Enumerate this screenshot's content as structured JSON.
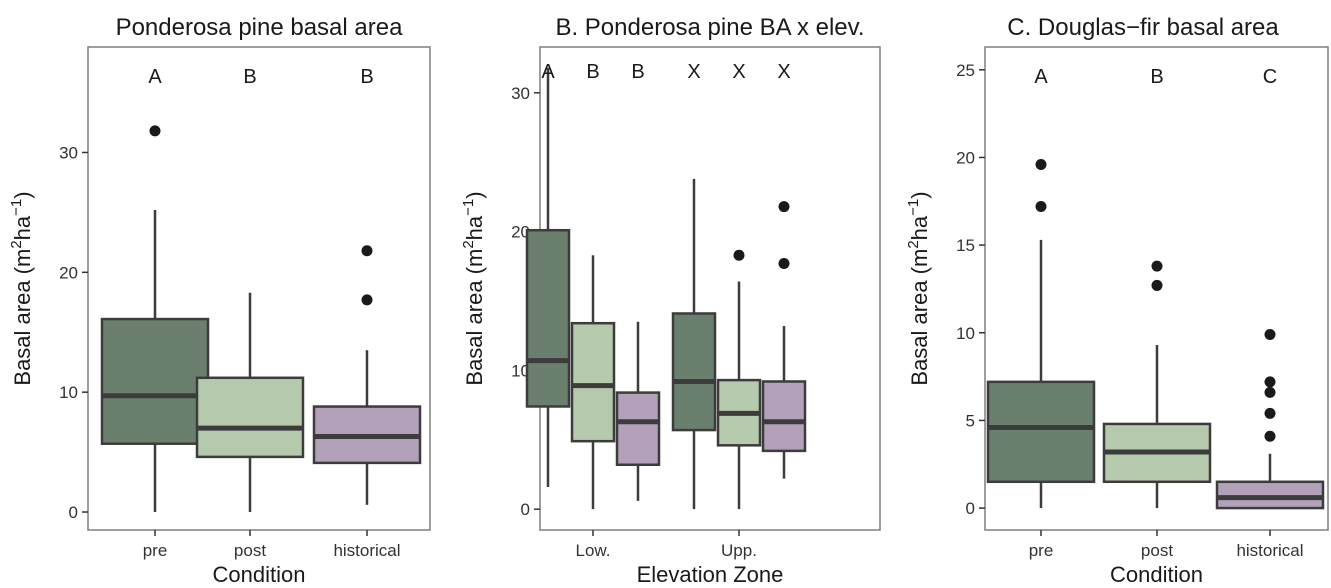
{
  "colors": {
    "pre": "#6b7f6e",
    "post": "#b5c9ad",
    "historical": "#b3a0b9",
    "outline": "#3c3c3c",
    "outlier": "#1a1a1a"
  },
  "chart_data": [
    {
      "type": "box",
      "title": "Ponderosa pine basal area",
      "xlabel": "Condition",
      "ylabel_main": "Basal area (m",
      "ylabel_sup1": "2",
      "ylabel_mid": "ha",
      "ylabel_sup2": "−1",
      "ylabel_end": ")",
      "ylim": [
        -1.5,
        38.8
      ],
      "yticks": [
        0,
        10,
        20,
        30
      ],
      "groups": [
        "pre",
        "post",
        "historical"
      ],
      "boxes": [
        {
          "group": "pre",
          "fill": "pre",
          "letter": "A",
          "min": 0,
          "q1": 5.7,
          "median": 9.7,
          "q3": 16.1,
          "max": 25.2,
          "outliers": [
            31.8
          ]
        },
        {
          "group": "post",
          "fill": "post",
          "letter": "B",
          "min": 0,
          "q1": 4.6,
          "median": 7.0,
          "q3": 11.2,
          "max": 18.3,
          "outliers": []
        },
        {
          "group": "historical",
          "fill": "historical",
          "letter": "B",
          "min": 0.6,
          "q1": 4.1,
          "median": 6.3,
          "q3": 8.8,
          "max": 13.5,
          "outliers": [
            17.7,
            21.8
          ]
        }
      ]
    },
    {
      "type": "box",
      "title": "B. Ponderosa pine BA x elev.",
      "xlabel": "Elevation Zone",
      "ylabel_main": "Basal area (m",
      "ylabel_sup1": "2",
      "ylabel_mid": "ha",
      "ylabel_sup2": "−1",
      "ylabel_end": ")",
      "ylim": [
        -1.5,
        33.3
      ],
      "yticks": [
        0,
        10,
        20,
        30
      ],
      "groups": [
        "Low.",
        "Upp."
      ],
      "boxes": [
        {
          "group": "Low.",
          "fill": "pre",
          "letter": "A",
          "min": 1.6,
          "q1": 7.4,
          "median": 10.7,
          "q3": 20.1,
          "max": 31.8,
          "outliers": []
        },
        {
          "group": "Low.",
          "fill": "post",
          "letter": "B",
          "min": 0,
          "q1": 4.9,
          "median": 8.9,
          "q3": 13.4,
          "max": 18.3,
          "outliers": []
        },
        {
          "group": "Low.",
          "fill": "historical",
          "letter": "B",
          "min": 0.6,
          "q1": 3.2,
          "median": 6.3,
          "q3": 8.4,
          "max": 13.5,
          "outliers": []
        },
        {
          "group": "Upp.",
          "fill": "pre",
          "letter": "X",
          "min": 0,
          "q1": 5.7,
          "median": 9.2,
          "q3": 14.1,
          "max": 23.8,
          "outliers": []
        },
        {
          "group": "Upp.",
          "fill": "post",
          "letter": "X",
          "min": 0,
          "q1": 4.6,
          "median": 6.9,
          "q3": 9.3,
          "max": 16.4,
          "outliers": [
            18.3
          ]
        },
        {
          "group": "Upp.",
          "fill": "historical",
          "letter": "X",
          "min": 2.2,
          "q1": 4.2,
          "median": 6.3,
          "q3": 9.2,
          "max": 13.2,
          "outliers": [
            17.7,
            21.8
          ]
        }
      ]
    },
    {
      "type": "box",
      "title": "C. Douglas−fir basal area",
      "xlabel": "Condition",
      "ylabel_main": "Basal area (m",
      "ylabel_sup1": "2",
      "ylabel_mid": "ha",
      "ylabel_sup2": "−1",
      "ylabel_end": ")",
      "ylim": [
        -1.25,
        26.3
      ],
      "yticks": [
        0,
        5,
        10,
        15,
        20,
        25
      ],
      "groups": [
        "pre",
        "post",
        "historical"
      ],
      "boxes": [
        {
          "group": "pre",
          "fill": "pre",
          "letter": "A",
          "min": 0,
          "q1": 1.5,
          "median": 4.6,
          "q3": 7.2,
          "max": 15.3,
          "outliers": [
            17.2,
            19.6
          ]
        },
        {
          "group": "post",
          "fill": "post",
          "letter": "B",
          "min": 0,
          "q1": 1.5,
          "median": 3.2,
          "q3": 4.8,
          "max": 9.3,
          "outliers": [
            12.7,
            13.8
          ]
        },
        {
          "group": "historical",
          "fill": "historical",
          "letter": "C",
          "min": 0,
          "q1": 0,
          "median": 0.6,
          "q3": 1.5,
          "max": 3.1,
          "outliers": [
            4.1,
            5.4,
            6.6,
            7.2,
            9.9
          ]
        }
      ]
    }
  ]
}
